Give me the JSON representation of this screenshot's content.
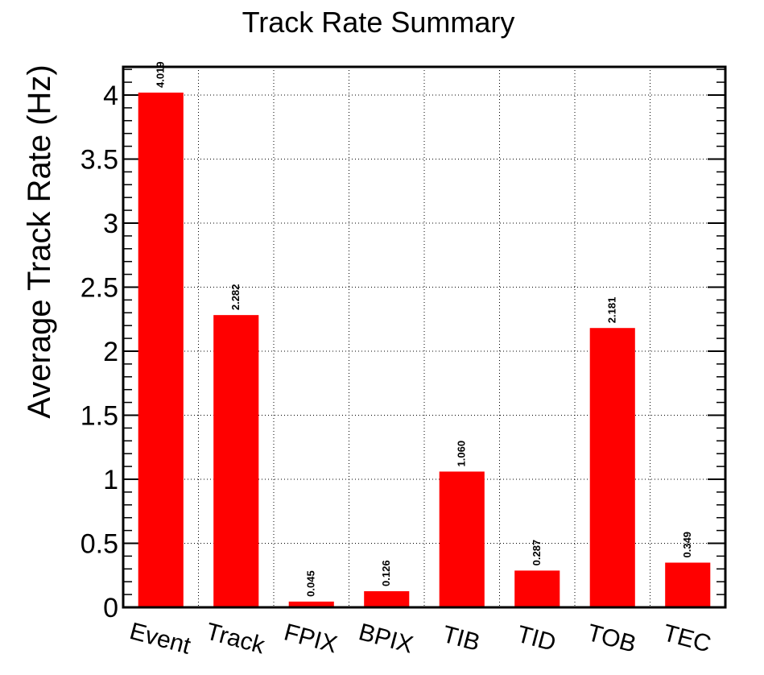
{
  "chart_data": {
    "type": "bar",
    "title": "Track Rate Summary",
    "xlabel": "",
    "ylabel": "Average Track Rate (Hz)",
    "categories": [
      "Event",
      "Track",
      "FPIX",
      "BPIX",
      "TIB",
      "TID",
      "TOB",
      "TEC"
    ],
    "values": [
      4.019,
      2.282,
      0.045,
      0.126,
      1.06,
      0.287,
      2.181,
      0.349
    ],
    "data_labels": [
      "4.019",
      "2.282",
      "0.045",
      "0.126",
      "1.060",
      "0.287",
      "2.181",
      "0.349"
    ],
    "ylim": [
      0,
      4.22
    ],
    "yticks": [
      0,
      0.5,
      1,
      1.5,
      2,
      2.5,
      3,
      3.5,
      4
    ],
    "ytick_labels": [
      "0",
      "0.5",
      "1",
      "1.5",
      "2",
      "2.5",
      "3",
      "3.5",
      "4"
    ],
    "grid": true,
    "legend": "none",
    "colors": {
      "bar": "#ff0000",
      "grid": "#000000",
      "frame": "#000000"
    }
  }
}
